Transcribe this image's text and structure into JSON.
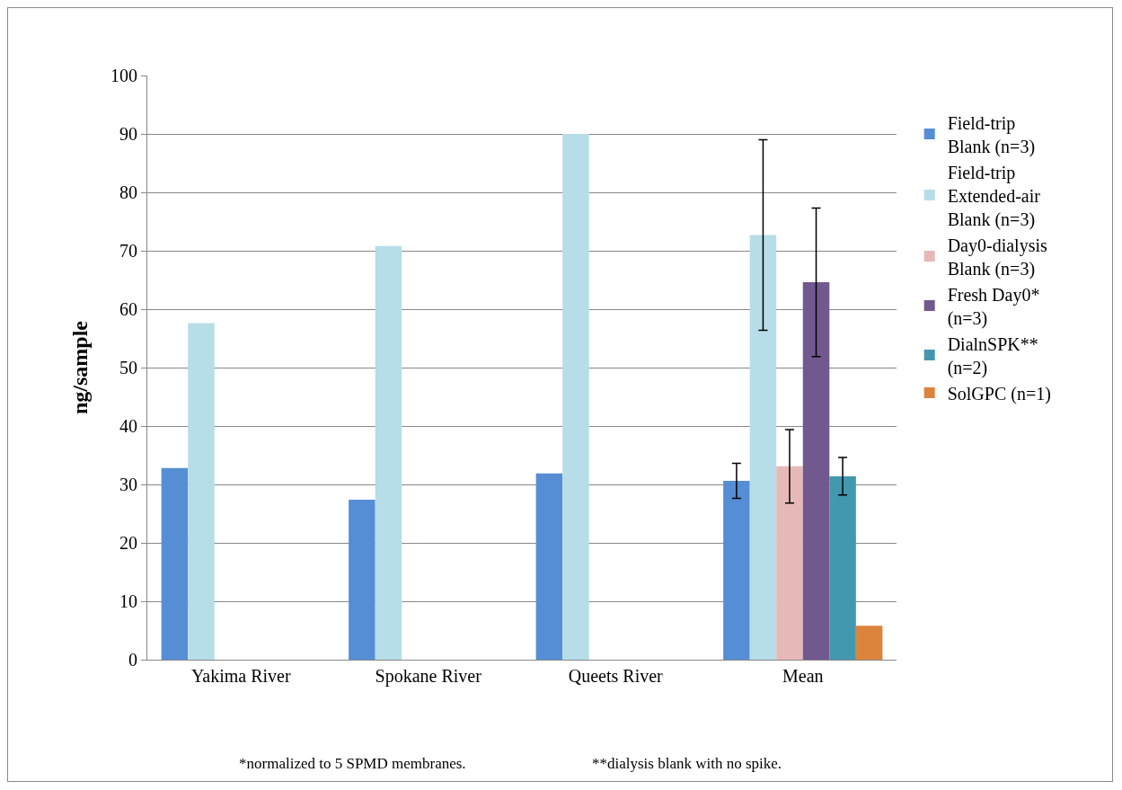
{
  "chart_data": {
    "type": "bar",
    "ylabel": "ng/sample",
    "categories": [
      "Yakima River",
      "Spokane River",
      "Queets River",
      "Mean"
    ],
    "series": [
      {
        "name": "Field-trip Blank (n=3)",
        "color": "#558ed5",
        "values": [
          32.8,
          27.4,
          31.9,
          30.6
        ],
        "errors": [
          null,
          null,
          null,
          3.0
        ]
      },
      {
        "name": "Field-trip Extended-air Blank (n=3)",
        "color": "#b7dde8",
        "values": [
          57.6,
          70.8,
          90.0,
          72.7
        ],
        "errors": [
          null,
          null,
          null,
          16.3
        ]
      },
      {
        "name": "Day0-dialysis Blank (n=3)",
        "color": "#e6b9b8",
        "values": [
          null,
          null,
          null,
          33.1
        ],
        "errors": [
          null,
          null,
          null,
          6.3
        ]
      },
      {
        "name": "Fresh Day0* (n=3)",
        "color": "#71588f",
        "values": [
          null,
          null,
          null,
          64.6
        ],
        "errors": [
          null,
          null,
          null,
          12.7
        ]
      },
      {
        "name": "DialnSPK** (n=2)",
        "color": "#4198af",
        "values": [
          null,
          null,
          null,
          31.4
        ],
        "errors": [
          null,
          null,
          null,
          3.2
        ]
      },
      {
        "name": "SolGPC (n=1)",
        "color": "#dd843c",
        "values": [
          null,
          null,
          null,
          5.8
        ]
      }
    ],
    "ylim": [
      0,
      100
    ],
    "yticks": [
      0,
      10,
      20,
      30,
      40,
      50,
      60,
      70,
      80,
      90,
      100
    ],
    "grid": "y",
    "legend": "right",
    "annotations": [
      "*normalized to 5 SPMD membranes.",
      "**dialysis blank with no spike."
    ]
  }
}
